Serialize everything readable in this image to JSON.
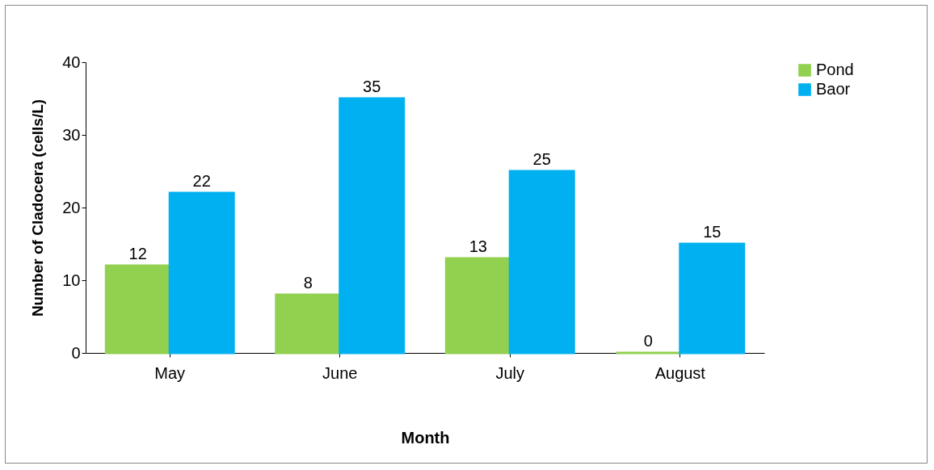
{
  "chart_data": {
    "type": "bar",
    "xlabel": "Month",
    "ylabel": "Number of Cladocera (cells/L)",
    "categories": [
      "May",
      "June",
      "July",
      "August"
    ],
    "series": [
      {
        "name": "Pond",
        "color": "#92d050",
        "values": [
          12,
          8,
          13,
          0
        ]
      },
      {
        "name": "Baor",
        "color": "#00b0f0",
        "values": [
          22,
          35,
          25,
          15
        ]
      }
    ],
    "ylim": [
      0,
      40
    ],
    "yticks": [
      0,
      10,
      20,
      30,
      40
    ],
    "grid": false,
    "legend": "right",
    "data_labels": true
  }
}
